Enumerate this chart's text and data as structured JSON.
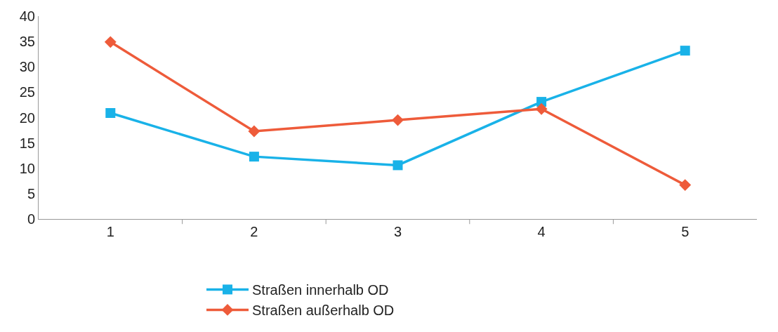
{
  "chart_data": {
    "type": "line",
    "categories": [
      "1",
      "2",
      "3",
      "4",
      "5"
    ],
    "series": [
      {
        "name": "Straßen innerhalb OD",
        "color": "#19b2e8",
        "marker": "square",
        "values": [
          20.9,
          12.3,
          10.6,
          23.1,
          33.2
        ]
      },
      {
        "name": "Straßen außerhalb OD",
        "color": "#ee5b3a",
        "marker": "diamond",
        "values": [
          34.9,
          17.3,
          19.5,
          21.7,
          6.7
        ]
      }
    ],
    "ylim": [
      0,
      40
    ],
    "yticks": [
      0,
      5,
      10,
      15,
      20,
      25,
      30,
      35,
      40
    ],
    "legend": "bottom"
  }
}
